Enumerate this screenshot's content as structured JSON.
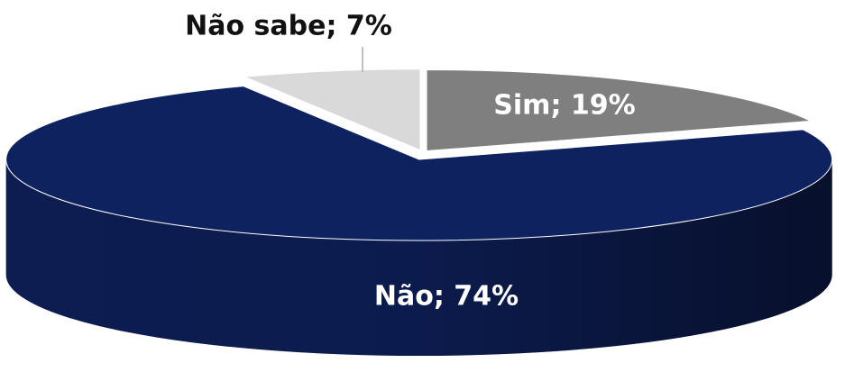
{
  "chart_data": {
    "type": "pie",
    "categories": [
      "Sim",
      "Não",
      "Não sabe"
    ],
    "values": [
      19,
      74,
      7
    ],
    "value_labels": [
      "Sim; 19%",
      "Não; 74%",
      "Não sabe; 7%"
    ],
    "colors": [
      "#7f7f7f",
      "#0f2260",
      "#d9d9d9"
    ]
  }
}
